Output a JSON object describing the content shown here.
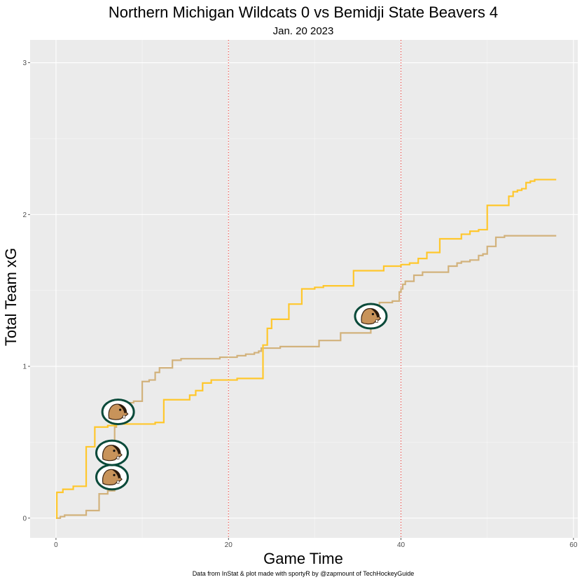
{
  "chart_data": {
    "type": "line",
    "title": "Northern Michigan Wildcats 0 vs Bemidji State Beavers 4",
    "subtitle": "Jan. 20 2023",
    "xlabel": "Game Time",
    "ylabel": "Total Team xG",
    "caption": "Data from InStat & plot made with sportyR by @zapmount of TechHockeyGuide",
    "xlim": [
      -3,
      60.5
    ],
    "ylim": [
      -0.13,
      3.15
    ],
    "x_ticks": [
      0,
      20,
      40,
      60
    ],
    "y_ticks": [
      0,
      1,
      2,
      3
    ],
    "grid": true,
    "period_lines": [
      20,
      40
    ],
    "period_line_color": "#e8413b",
    "panel_color": "#ebebeb",
    "series": [
      {
        "color": "#ffc72c",
        "points": [
          [
            0,
            0
          ],
          [
            0.1,
            0.17
          ],
          [
            0.8,
            0.19
          ],
          [
            2.0,
            0.21
          ],
          [
            3.5,
            0.47
          ],
          [
            4.5,
            0.6
          ],
          [
            6.0,
            0.61
          ],
          [
            7.0,
            0.62
          ],
          [
            11.5,
            0.63
          ],
          [
            12.5,
            0.78
          ],
          [
            15.5,
            0.81
          ],
          [
            16.2,
            0.84
          ],
          [
            17.0,
            0.89
          ],
          [
            18.0,
            0.91
          ],
          [
            21.0,
            0.92
          ],
          [
            24.0,
            1.14
          ],
          [
            24.5,
            1.25
          ],
          [
            25.0,
            1.31
          ],
          [
            27.0,
            1.41
          ],
          [
            28.5,
            1.51
          ],
          [
            30.0,
            1.52
          ],
          [
            31.0,
            1.53
          ],
          [
            34.5,
            1.63
          ],
          [
            38.0,
            1.66
          ],
          [
            40.0,
            1.67
          ],
          [
            41.0,
            1.68
          ],
          [
            42.0,
            1.71
          ],
          [
            43.0,
            1.75
          ],
          [
            44.5,
            1.84
          ],
          [
            47.0,
            1.87
          ],
          [
            48.0,
            1.89
          ],
          [
            49.0,
            1.9
          ],
          [
            50.0,
            2.06
          ],
          [
            52.5,
            2.12
          ],
          [
            53.0,
            2.15
          ],
          [
            53.5,
            2.16
          ],
          [
            54.0,
            2.17
          ],
          [
            54.5,
            2.21
          ],
          [
            55.0,
            2.22
          ],
          [
            55.5,
            2.23
          ],
          [
            58.0,
            2.23
          ]
        ]
      },
      {
        "color": "#d2b27c",
        "points": [
          [
            0,
            0
          ],
          [
            0.5,
            0.01
          ],
          [
            1.0,
            0.02
          ],
          [
            3.5,
            0.05
          ],
          [
            5.0,
            0.16
          ],
          [
            6.0,
            0.18
          ],
          [
            6.8,
            0.6
          ],
          [
            7.0,
            0.62
          ],
          [
            7.3,
            0.64
          ],
          [
            7.8,
            0.68
          ],
          [
            8.5,
            0.76
          ],
          [
            9.0,
            0.77
          ],
          [
            10.0,
            0.9
          ],
          [
            10.8,
            0.91
          ],
          [
            11.5,
            0.96
          ],
          [
            12.0,
            0.99
          ],
          [
            13.5,
            1.04
          ],
          [
            14.5,
            1.05
          ],
          [
            16.0,
            1.05
          ],
          [
            19.0,
            1.06
          ],
          [
            21.0,
            1.07
          ],
          [
            22.0,
            1.08
          ],
          [
            23.0,
            1.09
          ],
          [
            23.5,
            1.1
          ],
          [
            23.8,
            1.12
          ],
          [
            25.0,
            1.12
          ],
          [
            26.0,
            1.13
          ],
          [
            30.5,
            1.17
          ],
          [
            33.0,
            1.22
          ],
          [
            36.5,
            1.4
          ],
          [
            37.5,
            1.42
          ],
          [
            39.0,
            1.43
          ],
          [
            39.8,
            1.49
          ],
          [
            40.0,
            1.51
          ],
          [
            40.2,
            1.54
          ],
          [
            40.5,
            1.56
          ],
          [
            41.5,
            1.6
          ],
          [
            42.5,
            1.62
          ],
          [
            45.0,
            1.62
          ],
          [
            45.5,
            1.66
          ],
          [
            46.5,
            1.68
          ],
          [
            47.0,
            1.69
          ],
          [
            48.0,
            1.7
          ],
          [
            49.0,
            1.73
          ],
          [
            49.5,
            1.74
          ],
          [
            50.0,
            1.79
          ],
          [
            51.0,
            1.85
          ],
          [
            52.0,
            1.86
          ],
          [
            58.0,
            1.86
          ]
        ]
      }
    ],
    "goal_markers": [
      {
        "x": 6.5,
        "y": 0.27,
        "icon": "beaver-logo-icon"
      },
      {
        "x": 6.5,
        "y": 0.43,
        "icon": "beaver-logo-icon"
      },
      {
        "x": 7.2,
        "y": 0.7,
        "icon": "beaver-logo-icon"
      },
      {
        "x": 36.5,
        "y": 1.33,
        "icon": "beaver-logo-icon"
      }
    ]
  }
}
